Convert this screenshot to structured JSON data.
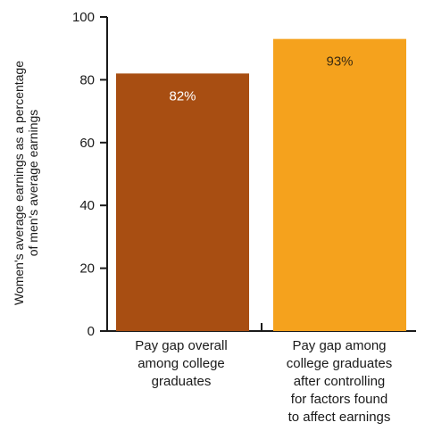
{
  "chart_data": {
    "type": "bar",
    "categories": [
      [
        "Pay gap overall",
        "among college",
        "graduates"
      ],
      [
        "Pay gap among",
        "college graduates",
        "after controlling",
        "for factors found",
        "to affect earnings"
      ]
    ],
    "values": [
      82,
      93
    ],
    "data_labels": [
      "82%",
      "93%"
    ],
    "ylabel": [
      "Women's average earnings as a percentage",
      "of men's average earnings"
    ],
    "ylim": [
      0,
      100
    ],
    "yticks": [
      "0",
      "20",
      "40",
      "60",
      "80",
      "100"
    ],
    "grid": false,
    "colors": {
      "bar1": "#a84e12",
      "bar2": "#f5a21d",
      "axis": "#1a1a1a"
    }
  }
}
